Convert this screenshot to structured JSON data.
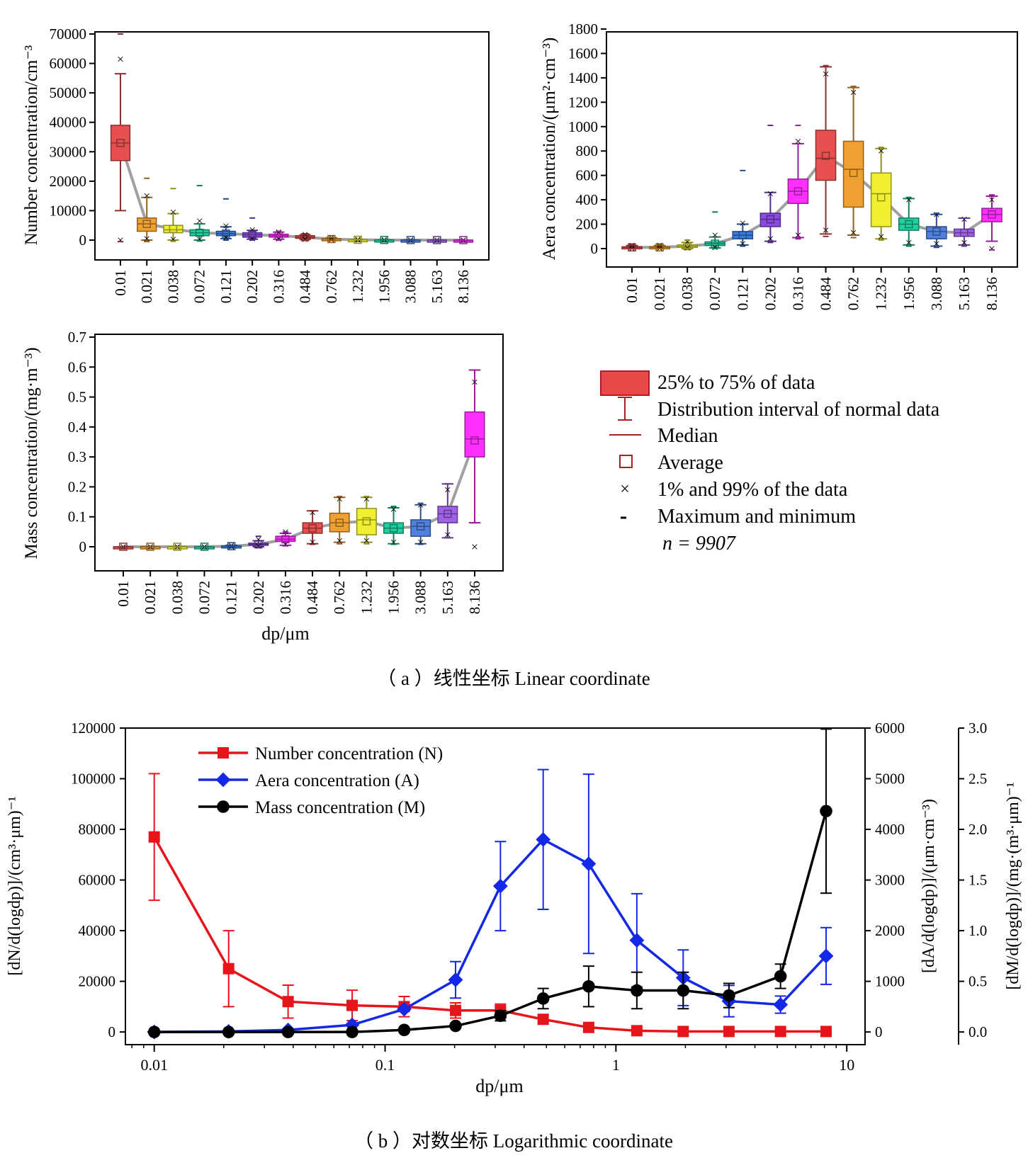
{
  "categories": [
    "0.01",
    "0.021",
    "0.038",
    "0.072",
    "0.121",
    "0.202",
    "0.316",
    "0.484",
    "0.762",
    "1.232",
    "1.956",
    "3.088",
    "5.163",
    "8.136"
  ],
  "category_colors": [
    "#d62728",
    "#ff8c00",
    "#e0e000",
    "#00c896",
    "#3a7be0",
    "#9b59d6",
    "#ff1de8",
    "#e83a3a",
    "#ff9020",
    "#ffff30",
    "#20e0a0",
    "#5080e0",
    "#a060e8",
    "#ff30e0"
  ],
  "box_colors": [
    "#e85050",
    "#f0a030",
    "#f0f030",
    "#20d0a0",
    "#3a7be0",
    "#8a4ae0",
    "#ff30ff",
    "#e85050",
    "#f0a030",
    "#f0f030",
    "#20d0a0",
    "#5080e0",
    "#a060e8",
    "#ff30ff"
  ],
  "panel_a_caption": "（ a ）线性坐标  Linear coordinate",
  "panel_b_caption": "（ b ）对数坐标  Logarithmic coordinate",
  "shared_xlabel": "dp/μm",
  "legend_a": {
    "items": [
      "25% to 75% of data",
      "Distribution interval of normal data",
      "Median",
      "Average",
      "1% and 99% of the data",
      "Maximum and minimum"
    ],
    "n_text": "n = 9907"
  },
  "chart_data": [
    {
      "type": "box",
      "ylabel": "Number concentration/cm⁻³",
      "ylim": [
        0,
        70000
      ],
      "yticks": [
        0,
        10000,
        20000,
        30000,
        40000,
        50000,
        60000,
        70000
      ],
      "boxes": [
        {
          "q1": 27000,
          "q3": 39000,
          "median": 33000,
          "mean": 33000,
          "wlo": 10000,
          "whi": 56500,
          "p1": 0,
          "p99": 61500,
          "min": -500,
          "max": 70000
        },
        {
          "q1": 3000,
          "q3": 7500,
          "median": 5500,
          "mean": 5500,
          "wlo": 0,
          "whi": 14500,
          "p1": 500,
          "p99": 15000,
          "min": -500,
          "max": 21000
        },
        {
          "q1": 2500,
          "q3": 5000,
          "median": 3500,
          "mean": 3800,
          "wlo": 0,
          "whi": 9000,
          "p1": 200,
          "p99": 9500,
          "min": -400,
          "max": 17500
        },
        {
          "q1": 1500,
          "q3": 3500,
          "median": 2500,
          "mean": 2500,
          "wlo": 0,
          "whi": 5500,
          "p1": 200,
          "p99": 6500,
          "min": -300,
          "max": 18500
        },
        {
          "q1": 1500,
          "q3": 3000,
          "median": 2200,
          "mean": 2200,
          "wlo": 500,
          "whi": 4500,
          "p1": 800,
          "p99": 4800,
          "min": 0,
          "max": 14000
        },
        {
          "q1": 1000,
          "q3": 2500,
          "median": 1800,
          "mean": 1800,
          "wlo": 300,
          "whi": 3300,
          "p1": 500,
          "p99": 3500,
          "min": 0,
          "max": 7500
        },
        {
          "q1": 1000,
          "q3": 2000,
          "median": 1500,
          "mean": 1500,
          "wlo": 300,
          "whi": 2700,
          "p1": 400,
          "p99": 2800,
          "min": 0,
          "max": 3000
        },
        {
          "q1": 600,
          "q3": 1500,
          "median": 1000,
          "mean": 1000,
          "wlo": 200,
          "whi": 1800,
          "p1": 300,
          "p99": 1900,
          "min": 0,
          "max": 2000
        },
        {
          "q1": 200,
          "q3": 500,
          "median": 350,
          "mean": 350,
          "wlo": 50,
          "whi": 800,
          "p1": 100,
          "p99": 800,
          "min": 0,
          "max": 900
        },
        {
          "q1": 50,
          "q3": 150,
          "median": 100,
          "mean": 100,
          "wlo": 0,
          "whi": 250,
          "p1": 20,
          "p99": 250,
          "min": 0,
          "max": 300
        },
        {
          "q1": 20,
          "q3": 60,
          "median": 40,
          "mean": 40,
          "wlo": 0,
          "whi": 100,
          "p1": 10,
          "p99": 100,
          "min": 0,
          "max": 120
        },
        {
          "q1": 5,
          "q3": 20,
          "median": 10,
          "mean": 10,
          "wlo": 0,
          "whi": 30,
          "p1": 0,
          "p99": 30,
          "min": 0,
          "max": 40
        },
        {
          "q1": 0,
          "q3": 5,
          "median": 2,
          "mean": 2,
          "wlo": 0,
          "whi": 10,
          "p1": 0,
          "p99": 10,
          "min": 0,
          "max": 10
        },
        {
          "q1": 0,
          "q3": 2,
          "median": 1,
          "mean": 1,
          "wlo": 0,
          "whi": 5,
          "p1": 0,
          "p99": 5,
          "min": 0,
          "max": 5
        }
      ]
    },
    {
      "type": "box",
      "ylabel": "Aera concentration/(μm²·cm⁻³)",
      "ylim": [
        0,
        1800
      ],
      "yticks": [
        0,
        200,
        400,
        600,
        800,
        1000,
        1200,
        1400,
        1600,
        1800
      ],
      "boxes": [
        {
          "q1": 5,
          "q3": 15,
          "median": 10,
          "mean": 10,
          "wlo": 0,
          "whi": 25,
          "p1": 2,
          "p99": 25,
          "min": 0,
          "max": 30
        },
        {
          "q1": 5,
          "q3": 15,
          "median": 10,
          "mean": 10,
          "wlo": 0,
          "whi": 25,
          "p1": 2,
          "p99": 25,
          "min": 0,
          "max": 30
        },
        {
          "q1": 10,
          "q3": 30,
          "median": 20,
          "mean": 20,
          "wlo": 0,
          "whi": 50,
          "p1": 5,
          "p99": 55,
          "min": 0,
          "max": 70
        },
        {
          "q1": 25,
          "q3": 55,
          "median": 40,
          "mean": 40,
          "wlo": 5,
          "whi": 95,
          "p1": 10,
          "p99": 110,
          "min": 0,
          "max": 300
        },
        {
          "q1": 80,
          "q3": 140,
          "median": 110,
          "mean": 110,
          "wlo": 30,
          "whi": 200,
          "p1": 40,
          "p99": 210,
          "min": 20,
          "max": 640
        },
        {
          "q1": 180,
          "q3": 290,
          "median": 240,
          "mean": 240,
          "wlo": 60,
          "whi": 460,
          "p1": 80,
          "p99": 450,
          "min": 50,
          "max": 1010
        },
        {
          "q1": 370,
          "q3": 570,
          "median": 470,
          "mean": 470,
          "wlo": 90,
          "whi": 860,
          "p1": 110,
          "p99": 880,
          "min": 80,
          "max": 1010
        },
        {
          "q1": 560,
          "q3": 970,
          "median": 740,
          "mean": 760,
          "wlo": 120,
          "whi": 1490,
          "p1": 150,
          "p99": 1430,
          "min": 100,
          "max": 1500
        },
        {
          "q1": 340,
          "q3": 880,
          "median": 650,
          "mean": 620,
          "wlo": 110,
          "whi": 1320,
          "p1": 130,
          "p99": 1280,
          "min": 90,
          "max": 1330
        },
        {
          "q1": 180,
          "q3": 620,
          "median": 450,
          "mean": 420,
          "wlo": 80,
          "whi": 820,
          "p1": 100,
          "p99": 800,
          "min": 70,
          "max": 830
        },
        {
          "q1": 150,
          "q3": 250,
          "median": 200,
          "mean": 200,
          "wlo": 30,
          "whi": 410,
          "p1": 50,
          "p99": 400,
          "min": 20,
          "max": 420
        },
        {
          "q1": 80,
          "q3": 180,
          "median": 140,
          "mean": 140,
          "wlo": 20,
          "whi": 280,
          "p1": 40,
          "p99": 280,
          "min": 10,
          "max": 290
        },
        {
          "q1": 100,
          "q3": 160,
          "median": 130,
          "mean": 130,
          "wlo": 30,
          "whi": 250,
          "p1": 50,
          "p99": 240,
          "min": 20,
          "max": 250
        },
        {
          "q1": 220,
          "q3": 330,
          "median": 280,
          "mean": 280,
          "wlo": 60,
          "whi": 430,
          "p1": 0,
          "p99": 400,
          "min": -10,
          "max": 440
        }
      ]
    },
    {
      "type": "box",
      "ylabel": "Mass concentration/(mg·m⁻³)",
      "ylim": [
        0,
        0.7
      ],
      "yticks": [
        0.0,
        0.1,
        0.2,
        0.3,
        0.4,
        0.5,
        0.6,
        0.7
      ],
      "boxes": [
        {
          "q1": 0,
          "q3": 0,
          "median": 0,
          "mean": 0,
          "wlo": 0,
          "whi": 0,
          "p1": 0,
          "p99": 0,
          "min": 0,
          "max": 0
        },
        {
          "q1": 0,
          "q3": 0,
          "median": 0,
          "mean": 0,
          "wlo": 0,
          "whi": 0,
          "p1": 0,
          "p99": 0,
          "min": 0,
          "max": 0
        },
        {
          "q1": 0,
          "q3": 0,
          "median": 0,
          "mean": 0,
          "wlo": 0,
          "whi": 0,
          "p1": 0,
          "p99": 0,
          "min": 0,
          "max": 0
        },
        {
          "q1": 0,
          "q3": 0,
          "median": 0,
          "mean": 0,
          "wlo": 0,
          "whi": 0,
          "p1": 0,
          "p99": 0,
          "min": 0,
          "max": 0
        },
        {
          "q1": 0,
          "q3": 0.003,
          "median": 0.002,
          "mean": 0.002,
          "wlo": 0,
          "whi": 0.005,
          "p1": 0,
          "p99": 0.005,
          "min": 0,
          "max": 0.005
        },
        {
          "q1": 0.005,
          "q3": 0.012,
          "median": 0.008,
          "mean": 0.008,
          "wlo": 0,
          "whi": 0.02,
          "p1": 0.002,
          "p99": 0.025,
          "min": 0,
          "max": 0.035
        },
        {
          "q1": 0.018,
          "q3": 0.035,
          "median": 0.025,
          "mean": 0.025,
          "wlo": 0.005,
          "whi": 0.045,
          "p1": 0.008,
          "p99": 0.05,
          "min": 0.003,
          "max": 0.05
        },
        {
          "q1": 0.045,
          "q3": 0.08,
          "median": 0.062,
          "mean": 0.062,
          "wlo": 0.01,
          "whi": 0.12,
          "p1": 0.015,
          "p99": 0.115,
          "min": 0.008,
          "max": 0.12
        },
        {
          "q1": 0.05,
          "q3": 0.112,
          "median": 0.08,
          "mean": 0.08,
          "wlo": 0.015,
          "whi": 0.165,
          "p1": 0.02,
          "p99": 0.16,
          "min": 0.01,
          "max": 0.168
        },
        {
          "q1": 0.04,
          "q3": 0.128,
          "median": 0.09,
          "mean": 0.085,
          "wlo": 0.015,
          "whi": 0.165,
          "p1": 0.02,
          "p99": 0.16,
          "min": 0.01,
          "max": 0.168
        },
        {
          "q1": 0.045,
          "q3": 0.08,
          "median": 0.062,
          "mean": 0.062,
          "wlo": 0.01,
          "whi": 0.13,
          "p1": 0.015,
          "p99": 0.125,
          "min": 0.008,
          "max": 0.135
        },
        {
          "q1": 0.035,
          "q3": 0.09,
          "median": 0.068,
          "mean": 0.068,
          "wlo": 0.01,
          "whi": 0.14,
          "p1": 0.015,
          "p99": 0.14,
          "min": 0.008,
          "max": 0.145
        },
        {
          "q1": 0.08,
          "q3": 0.135,
          "median": 0.11,
          "mean": 0.11,
          "wlo": 0.03,
          "whi": 0.21,
          "p1": 0.04,
          "p99": 0.19,
          "min": 0.03,
          "max": 0.21
        },
        {
          "q1": 0.3,
          "q3": 0.45,
          "median": 0.36,
          "mean": 0.355,
          "wlo": 0.08,
          "whi": 0.59,
          "p1": 0.0,
          "p99": 0.55,
          "min": 0.08,
          "max": 0.59
        }
      ]
    },
    {
      "type": "line",
      "scale_x": "log",
      "xlim": [
        0.0075,
        12
      ],
      "xticks": [
        0.01,
        0.1,
        1,
        10
      ],
      "xtick_labels": [
        "0.01",
        "0.1",
        "1",
        "10"
      ],
      "xlabel": "dp/μm",
      "x": [
        0.01,
        0.021,
        0.038,
        0.072,
        0.121,
        0.202,
        0.316,
        0.484,
        0.762,
        1.232,
        1.956,
        3.088,
        5.163,
        8.136
      ],
      "axes": [
        {
          "id": "N",
          "label": "[dN/d(logdp)]/(cm³·μm)⁻¹",
          "ylim": [
            -5000,
            120000
          ],
          "ticks": [
            0,
            20000,
            40000,
            60000,
            80000,
            100000,
            120000
          ]
        },
        {
          "id": "A",
          "label": "[dA/d(logdp)]/(μm·cm⁻³)",
          "ylim": [
            -250,
            6000
          ],
          "ticks": [
            0,
            1000,
            2000,
            3000,
            4000,
            5000,
            6000
          ]
        },
        {
          "id": "M",
          "label": "[dM/d(logdp)]/(mg·(m³·μm)⁻¹",
          "ylim": [
            -0.125,
            3.0
          ],
          "ticks": [
            0.0,
            0.5,
            1.0,
            1.5,
            2.0,
            2.5,
            3.0
          ],
          "tick_labels": [
            "0.0",
            "0.5",
            "1.0",
            "1.5",
            "2.0",
            "2.5",
            "3.0"
          ]
        }
      ],
      "series": [
        {
          "name": "Number concentration (N)",
          "axis": "N",
          "color": "#e8141c",
          "marker": "square",
          "values": [
            77000,
            25000,
            12000,
            10500,
            10000,
            8500,
            8500,
            5000,
            1800,
            500,
            200,
            200,
            200,
            200
          ],
          "err": [
            25000,
            15000,
            6500,
            6000,
            4000,
            3000,
            2500,
            null,
            null,
            null,
            null,
            null,
            null,
            null
          ]
        },
        {
          "name": "Aera concentration (A)",
          "axis": "A",
          "color": "#1428e8",
          "marker": "diamond",
          "values": [
            0,
            10,
            40,
            140,
            450,
            1030,
            2880,
            3800,
            3320,
            1810,
            1070,
            610,
            540,
            1500
          ],
          "err": [
            null,
            null,
            null,
            null,
            null,
            360,
            880,
            1380,
            1770,
            920,
            550,
            310,
            170,
            560
          ]
        },
        {
          "name": "Mass concentration (M)",
          "axis": "M",
          "color": "#000000",
          "marker": "circle",
          "values": [
            0.0,
            0.0,
            0.0,
            0.0,
            0.02,
            0.06,
            0.16,
            0.33,
            0.45,
            0.41,
            0.41,
            0.36,
            0.55,
            2.18
          ],
          "err": [
            null,
            null,
            null,
            null,
            null,
            null,
            0.05,
            0.1,
            0.2,
            0.18,
            0.18,
            0.12,
            0.12,
            0.81
          ]
        }
      ]
    }
  ]
}
